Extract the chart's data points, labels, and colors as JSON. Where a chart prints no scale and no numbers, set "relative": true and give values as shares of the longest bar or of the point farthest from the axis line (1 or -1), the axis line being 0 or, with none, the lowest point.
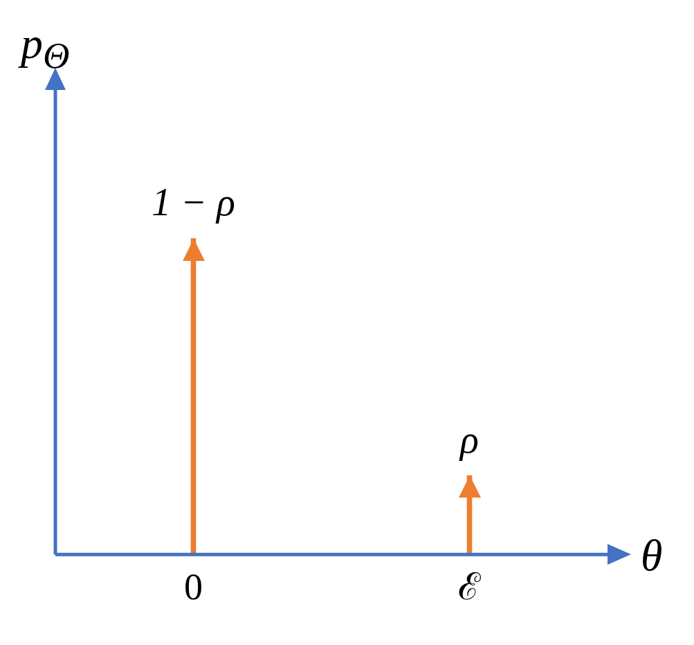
{
  "chart_data": {
    "type": "bar",
    "xlabel": "θ",
    "ylabel": "p$_{Θ}$",
    "categories": [
      "0",
      "ℰ"
    ],
    "values": [
      1,
      0.25
    ],
    "color": "#ed7d31",
    "relative": true,
    "grid": false,
    "legend": false,
    "annotations": [
      {
        "text": "1 − ρ",
        "x": "0",
        "y": 1
      },
      {
        "text": "ρ",
        "x": "ℰ",
        "y": 0.25
      }
    ]
  }
}
